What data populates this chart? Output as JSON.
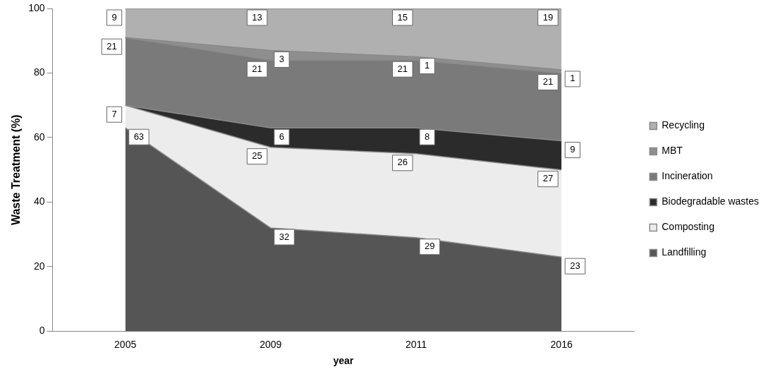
{
  "chart_data": {
    "type": "area",
    "stacked": true,
    "xlabel": "year",
    "ylabel": "Waste Treatment (%)",
    "categories": [
      "2005",
      "2009",
      "2011",
      "2016"
    ],
    "series": [
      {
        "name": "Landfilling",
        "color": "#555555",
        "values": [
          63,
          32,
          29,
          23
        ],
        "value_labels": [
          "63",
          "32",
          "29",
          "23"
        ]
      },
      {
        "name": "Composting",
        "color": "#ececec",
        "values": [
          7,
          25,
          26,
          27
        ],
        "value_labels": [
          "7",
          "25",
          "26",
          "27"
        ]
      },
      {
        "name": "Biodegradable wastes",
        "color": "#2b2b2b",
        "values": [
          0,
          6,
          8,
          9
        ],
        "value_labels": [
          null,
          "6",
          "8",
          "9"
        ]
      },
      {
        "name": "Incineration",
        "color": "#7a7a7a",
        "values": [
          21,
          21,
          21,
          21
        ],
        "value_labels": [
          "21",
          "21",
          "21",
          "21"
        ]
      },
      {
        "name": "MBT",
        "color": "#8e8e8e",
        "values": [
          0,
          3,
          1,
          1
        ],
        "value_labels": [
          null,
          "3",
          "1",
          "1"
        ]
      },
      {
        "name": "Recycling",
        "color": "#b0b0b0",
        "values": [
          9,
          13,
          15,
          19
        ],
        "value_labels": [
          "9",
          "13",
          "15",
          "19"
        ]
      }
    ],
    "ylim": [
      0,
      100
    ],
    "yticks": [
      0,
      20,
      40,
      60,
      80,
      100
    ],
    "grid": false,
    "legend": "right"
  }
}
